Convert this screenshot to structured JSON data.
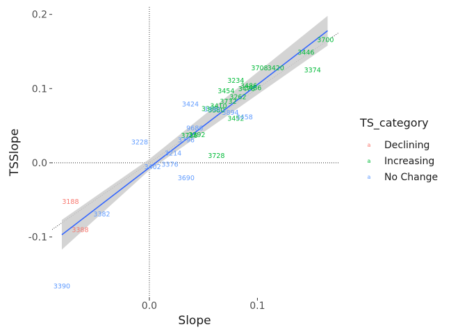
{
  "chart_data": {
    "type": "scatter",
    "xlabel": "Slope",
    "ylabel": "TSSlope",
    "xlim": [
      -0.09,
      0.175
    ],
    "ylim": [
      -0.182,
      0.21
    ],
    "x_ticks": [
      {
        "value": 0.0,
        "label": "0.0"
      },
      {
        "value": 0.1,
        "label": "0.1"
      }
    ],
    "y_ticks": [
      {
        "value": -0.1,
        "label": "-0.1"
      },
      {
        "value": 0.0,
        "label": "0.0"
      },
      {
        "value": 0.1,
        "label": "0.1"
      },
      {
        "value": 0.2,
        "label": "0.2"
      }
    ],
    "grid": false,
    "reference_lines": {
      "h0": true,
      "v0": true,
      "identity": true
    },
    "colors": {
      "Declining": "#F8766D",
      "Increasing": "#00BA38",
      "No Change": "#619CFF",
      "fit": "#3366FF",
      "ribbon": "#cccccc"
    },
    "legend": {
      "title": "TS_category",
      "placement": "right",
      "key_glyph": "a",
      "entries": [
        "Declining",
        "Increasing",
        "No Change"
      ]
    },
    "fit_line": {
      "x": [
        -0.081,
        0.165
      ],
      "y": [
        -0.097,
        0.178
      ],
      "se_band": [
        [
          -0.081,
          -0.117,
          -0.077
        ],
        [
          0.0,
          -0.01,
          0.005
        ],
        [
          0.165,
          0.158,
          0.198
        ]
      ]
    },
    "points": [
      {
        "label": "3700",
        "x": 0.163,
        "y": 0.166,
        "category": "Increasing"
      },
      {
        "label": "3446",
        "x": 0.145,
        "y": 0.149,
        "category": "Increasing"
      },
      {
        "label": "3374",
        "x": 0.151,
        "y": 0.125,
        "category": "Increasing"
      },
      {
        "label": "3708",
        "x": 0.102,
        "y": 0.128,
        "category": "Increasing"
      },
      {
        "label": "3420",
        "x": 0.117,
        "y": 0.128,
        "category": "Increasing"
      },
      {
        "label": "3234",
        "x": 0.08,
        "y": 0.111,
        "category": "Increasing"
      },
      {
        "label": "3454",
        "x": 0.071,
        "y": 0.097,
        "category": "Increasing"
      },
      {
        "label": "3476",
        "x": 0.09,
        "y": 0.1,
        "category": "Increasing"
      },
      {
        "label": "3486",
        "x": 0.096,
        "y": 0.101,
        "category": "Increasing"
      },
      {
        "label": "3486",
        "x": 0.092,
        "y": 0.104,
        "category": "Increasing"
      },
      {
        "label": "3262",
        "x": 0.082,
        "y": 0.089,
        "category": "Increasing"
      },
      {
        "label": "3732",
        "x": 0.073,
        "y": 0.083,
        "category": "Increasing"
      },
      {
        "label": "3410",
        "x": 0.064,
        "y": 0.077,
        "category": "Increasing"
      },
      {
        "label": "3398",
        "x": 0.056,
        "y": 0.073,
        "category": "Increasing"
      },
      {
        "label": "3380",
        "x": 0.062,
        "y": 0.071,
        "category": "Increasing"
      },
      {
        "label": "3392",
        "x": 0.044,
        "y": 0.038,
        "category": "Increasing"
      },
      {
        "label": "3736",
        "x": 0.037,
        "y": 0.037,
        "category": "Increasing"
      },
      {
        "label": "3728",
        "x": 0.062,
        "y": 0.01,
        "category": "Increasing"
      },
      {
        "label": "3452",
        "x": 0.08,
        "y": 0.06,
        "category": "Increasing"
      },
      {
        "label": "3424",
        "x": 0.038,
        "y": 0.079,
        "category": "No Change"
      },
      {
        "label": "3390",
        "x": 0.058,
        "y": 0.072,
        "category": "No Change"
      },
      {
        "label": "3894",
        "x": 0.075,
        "y": 0.068,
        "category": "No Change"
      },
      {
        "label": "3458",
        "x": 0.088,
        "y": 0.062,
        "category": "No Change"
      },
      {
        "label": "9686",
        "x": 0.042,
        "y": 0.047,
        "category": "No Change"
      },
      {
        "label": "3796",
        "x": 0.034,
        "y": 0.031,
        "category": "No Change"
      },
      {
        "label": "3228",
        "x": -0.009,
        "y": 0.028,
        "category": "No Change"
      },
      {
        "label": "3214",
        "x": 0.022,
        "y": 0.013,
        "category": "No Change"
      },
      {
        "label": "3376",
        "x": 0.019,
        "y": -0.002,
        "category": "No Change"
      },
      {
        "label": "3402",
        "x": 0.003,
        "y": -0.005,
        "category": "No Change"
      },
      {
        "label": "3690",
        "x": 0.034,
        "y": -0.02,
        "category": "No Change"
      },
      {
        "label": "3382",
        "x": -0.044,
        "y": -0.069,
        "category": "No Change"
      },
      {
        "label": "3390",
        "x": -0.081,
        "y": -0.166,
        "category": "No Change"
      },
      {
        "label": "3188",
        "x": -0.073,
        "y": -0.052,
        "category": "Declining"
      },
      {
        "label": "3388",
        "x": -0.064,
        "y": -0.09,
        "category": "Declining"
      }
    ]
  }
}
